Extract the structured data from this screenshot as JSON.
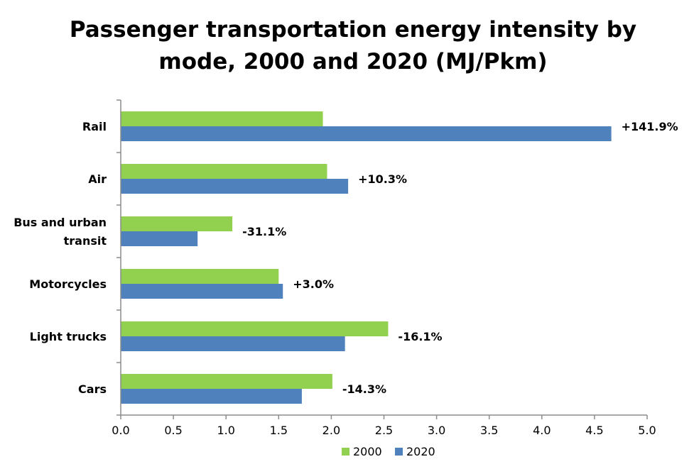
{
  "chart_data": {
    "type": "bar",
    "orientation": "horizontal",
    "title_lines": [
      "Passenger transportation energy intensity by",
      "mode, 2000 and 2020 (MJ/Pkm)"
    ],
    "category_lines": [
      [
        "Rail"
      ],
      [
        "Air"
      ],
      [
        "Bus and urban",
        "transit"
      ],
      [
        "Motorcycles"
      ],
      [
        "Light trucks"
      ],
      [
        "Cars"
      ]
    ],
    "series": [
      {
        "name": "2000",
        "color": "#92D050",
        "values": [
          1.92,
          1.96,
          1.06,
          1.5,
          2.54,
          2.01
        ]
      },
      {
        "name": "2020",
        "color": "#4F81BD",
        "values": [
          4.66,
          2.16,
          0.73,
          1.54,
          2.13,
          1.72
        ]
      }
    ],
    "data_labels": [
      "+141.9%",
      "+10.3%",
      "-31.1%",
      "+3.0%",
      "-16.1%",
      "-14.3%"
    ],
    "xlim": [
      0,
      5
    ],
    "x_ticks": [
      "0.0",
      "0.5",
      "1.0",
      "1.5",
      "2.0",
      "2.5",
      "3.0",
      "3.5",
      "4.0",
      "4.5",
      "5.0"
    ],
    "grid": false,
    "legend_position": "bottom"
  }
}
